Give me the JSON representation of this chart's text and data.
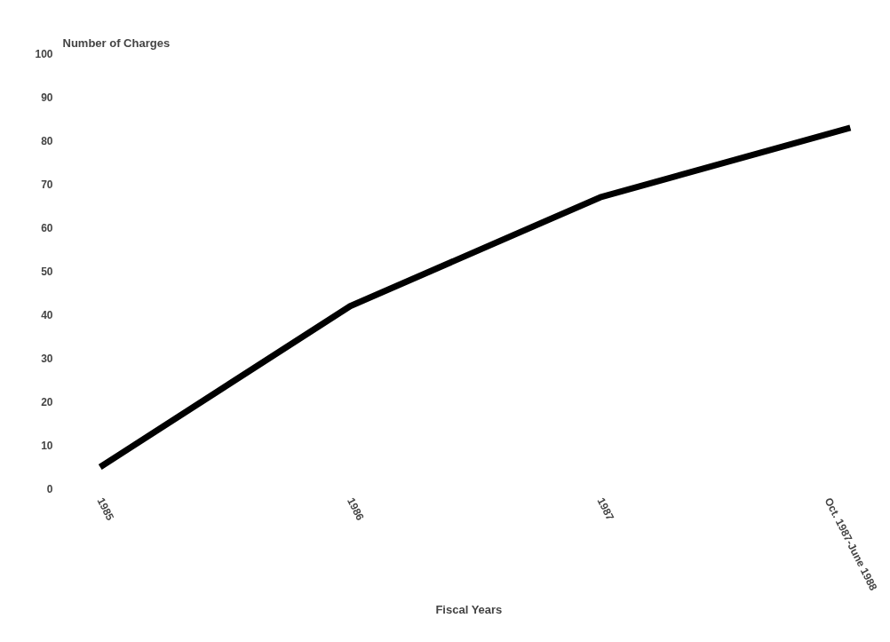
{
  "chart_data": {
    "type": "line",
    "ylabel": "Number of Charges",
    "xlabel": "Fiscal Years",
    "categories": [
      "1985",
      "1986",
      "1987",
      "Oct. 1987-June 1988"
    ],
    "series": [
      {
        "color": "#000000",
        "values": [
          5,
          42,
          67,
          83
        ]
      }
    ],
    "ylim": [
      0,
      100
    ],
    "yticks": [
      0,
      10,
      20,
      30,
      40,
      50,
      60,
      70,
      80,
      90,
      100
    ],
    "grid": false,
    "marker": "none",
    "line_style": "solid"
  }
}
